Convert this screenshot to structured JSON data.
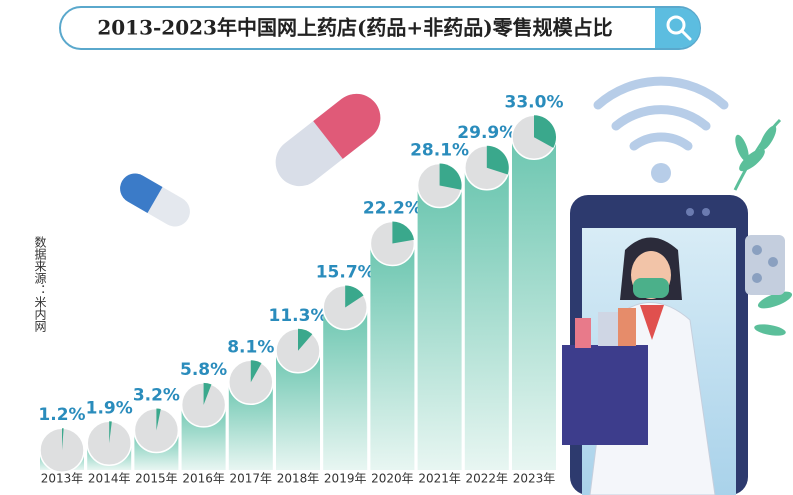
{
  "chart_data": {
    "type": "bar",
    "title": "2013-2023年中国网上药店(药品+非药品)零售规模占比",
    "source": "数据来源：米内网",
    "categories": [
      "2013年",
      "2014年",
      "2015年",
      "2016年",
      "2017年",
      "2018年",
      "2019年",
      "2020年",
      "2021年",
      "2022年",
      "2023年"
    ],
    "values": [
      1.2,
      1.9,
      3.2,
      5.8,
      8.1,
      11.3,
      15.7,
      22.2,
      28.1,
      29.9,
      33.0
    ],
    "value_labels": [
      "1.2%",
      "1.9%",
      "3.2%",
      "5.8%",
      "8.1%",
      "11.3%",
      "15.7%",
      "22.2%",
      "28.1%",
      "29.9%",
      "33.0%"
    ],
    "color": "#3aa88c",
    "label_color": "#2a8cbc"
  }
}
